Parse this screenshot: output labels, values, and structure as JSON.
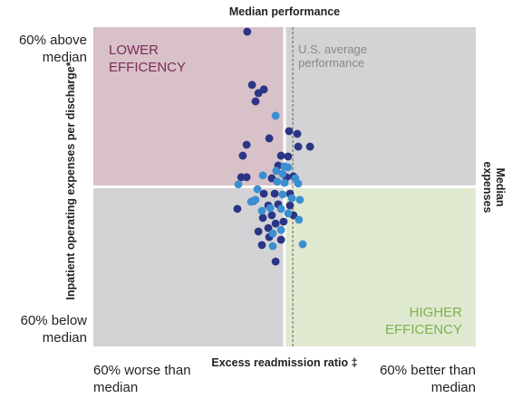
{
  "chart_data": {
    "type": "scatter",
    "title": "Median performance",
    "y2_label": "Median expenses",
    "xlabel": "Excess readmission ratio ‡",
    "ylabel": "Inpatient operating expenses per discharge*",
    "xlim": [
      -60,
      60
    ],
    "ylim": [
      -60,
      60
    ],
    "xticks": [
      {
        "value": -60,
        "label": "60% worse than median"
      },
      {
        "value": 60,
        "label": "60% better than median"
      }
    ],
    "yticks": [
      {
        "value": 60,
        "label": "60% above median"
      },
      {
        "value": -60,
        "label": "60% below median"
      }
    ],
    "quadrant_labels": {
      "top_left": "LOWER EFFICENCY",
      "bottom_right": "HIGHER EFFICENCY"
    },
    "reference_line": {
      "label": "U.S. average performance",
      "x": 2.6
    },
    "series": [
      {
        "color": "#2b3585",
        "x": [
          -11.7,
          -10.2,
          -8.2,
          -6.5,
          -9.1,
          -4.8,
          -11.9,
          1.4,
          4.0,
          8.0,
          4.3,
          -1.1,
          1.1,
          -13.1,
          -2.0,
          2.8,
          -13.6,
          -11.9,
          -4.0,
          0.6,
          1.7,
          -3.1,
          -6.5,
          -14.8,
          -9.7,
          -5.1,
          1.7,
          -2.0,
          2.8,
          -4.0,
          -6.8,
          -0.3,
          -8.2,
          -2.8,
          -4.8,
          -7.1,
          -2.8,
          -1.1,
          -5.1
        ],
        "values": [
          58.3,
          38.3,
          35.2,
          36.6,
          32.1,
          18.2,
          15.8,
          20.9,
          19.9,
          15.1,
          15.1,
          11.7,
          11.4,
          11.7,
          8.0,
          3.9,
          3.6,
          3.6,
          3.2,
          3.6,
          -2.6,
          -2.6,
          -2.6,
          -8.3,
          -5.3,
          -7.0,
          -7.0,
          -6.6,
          -10.7,
          -10.7,
          -11.7,
          -13.1,
          -16.8,
          -13.8,
          -18.9,
          -21.9,
          -28.1,
          -19.9,
          -15.5
        ]
      },
      {
        "color": "#3b8fd1",
        "x": [
          -2.8,
          1.1,
          3.4,
          -6.8,
          -2.6,
          -0.6,
          0.0,
          -14.5,
          -8.5,
          4.3,
          -0.6,
          -9.1,
          -4.5,
          1.1,
          -1.1,
          2.3,
          4.8,
          4.5,
          -1.1,
          -3.7,
          5.7,
          -3.7,
          -10.5,
          -7.1,
          0.0,
          -2.3
        ],
        "values": [
          26.7,
          7.3,
          3.2,
          4.3,
          6.0,
          4.9,
          7.7,
          0.9,
          -0.9,
          1.2,
          -2.9,
          -4.9,
          -8.0,
          -10.0,
          -8.3,
          -4.3,
          -4.9,
          -12.4,
          -16.2,
          -17.5,
          -21.6,
          -22.3,
          -5.6,
          -9.0,
          1.5,
          1.9
        ]
      }
    ]
  }
}
